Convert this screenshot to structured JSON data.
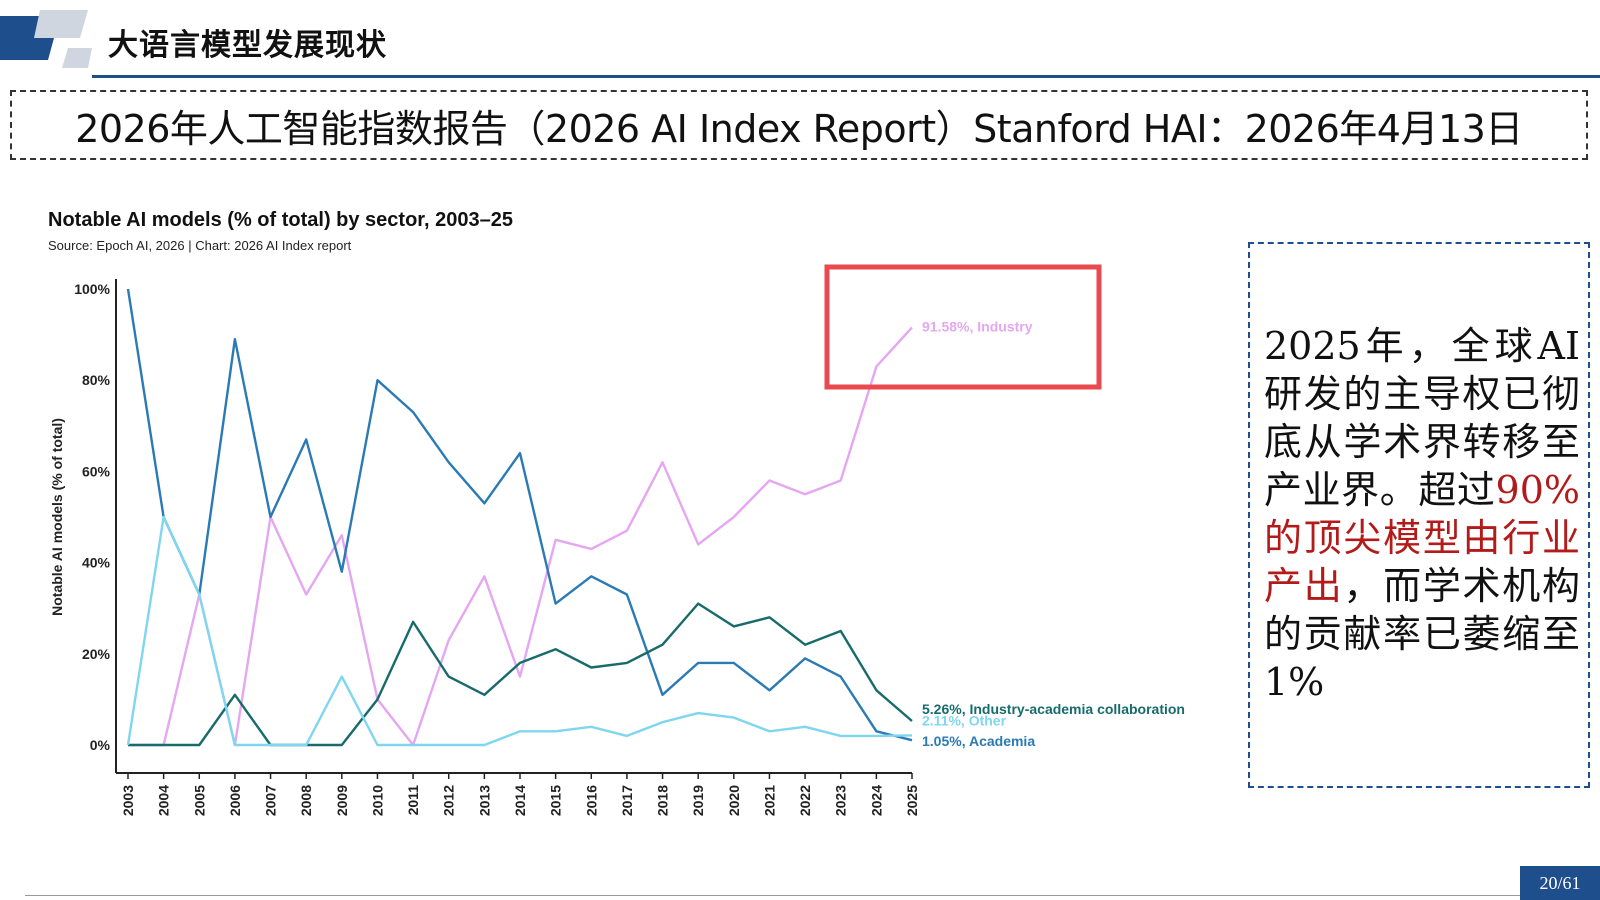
{
  "header": {
    "title": "大语言模型发展现状"
  },
  "banner": {
    "text": "2026年人工智能指数报告（2026 AI Index Report）Stanford HAI：2026年4月13日"
  },
  "note": {
    "text_before": "2025年，全球AI研发的主导权已彻底从学术界转移至产业界。超过",
    "text_highlight": "90%的顶尖模型由行业产出",
    "text_after": "，而学术机构的贡献率已萎缩至1%"
  },
  "page": {
    "number": "20/61"
  },
  "colors": {
    "industry": "#e5a6f2",
    "academia": "#2a7ab5",
    "collab": "#186b6b",
    "other": "#7fd6ef",
    "highlight_box": "#e84a4f",
    "accent": "#1f4e8c"
  },
  "chart_data": {
    "type": "line",
    "title": "Notable AI models (% of total) by sector, 2003–25",
    "source": "Source: Epoch AI, 2026 | Chart: 2026 AI Index report",
    "ylabel": "Notable AI models (% of total)",
    "xlabel": "",
    "ylim": [
      0,
      100
    ],
    "yticks": [
      "0%",
      "20%",
      "40%",
      "60%",
      "80%",
      "100%"
    ],
    "yticks_values": [
      0,
      20,
      40,
      60,
      80,
      100
    ],
    "x": [
      "2003",
      "2004",
      "2005",
      "2006",
      "2007",
      "2008",
      "2009",
      "2010",
      "2011",
      "2012",
      "2013",
      "2014",
      "2015",
      "2016",
      "2017",
      "2018",
      "2019",
      "2020",
      "2021",
      "2022",
      "2023",
      "2024",
      "2025"
    ],
    "series": [
      {
        "name": "Industry",
        "color": "#e5a6f2",
        "label": "91.58%, Industry",
        "values": [
          0,
          0,
          33,
          0,
          50,
          33,
          46,
          10,
          0,
          23,
          37,
          15,
          45,
          43,
          47,
          62,
          44,
          50,
          58,
          55,
          58,
          83,
          91.58
        ]
      },
      {
        "name": "Academia",
        "color": "#2a7ab5",
        "label": "1.05%, Academia",
        "values": [
          100,
          50,
          33,
          89,
          50,
          67,
          38,
          80,
          73,
          62,
          53,
          64,
          31,
          37,
          33,
          11,
          18,
          18,
          12,
          19,
          15,
          3,
          1.05
        ]
      },
      {
        "name": "Industry-academia collaboration",
        "color": "#186b6b",
        "label": "5.26%, Industry-academia collaboration",
        "values": [
          0,
          0,
          0,
          11,
          0,
          0,
          0,
          10,
          27,
          15,
          11,
          18,
          21,
          17,
          18,
          22,
          31,
          26,
          28,
          22,
          25,
          12,
          5.26
        ]
      },
      {
        "name": "Other",
        "color": "#7fd6ef",
        "label": "2.11%, Other",
        "values": [
          0,
          50,
          33,
          0,
          0,
          0,
          15,
          0,
          0,
          0,
          0,
          3,
          3,
          4,
          2,
          5,
          7,
          6,
          3,
          4,
          2,
          2,
          2.11
        ]
      }
    ],
    "grid": false,
    "annotation": "red rectangle highlighting Industry 2024–2025"
  }
}
